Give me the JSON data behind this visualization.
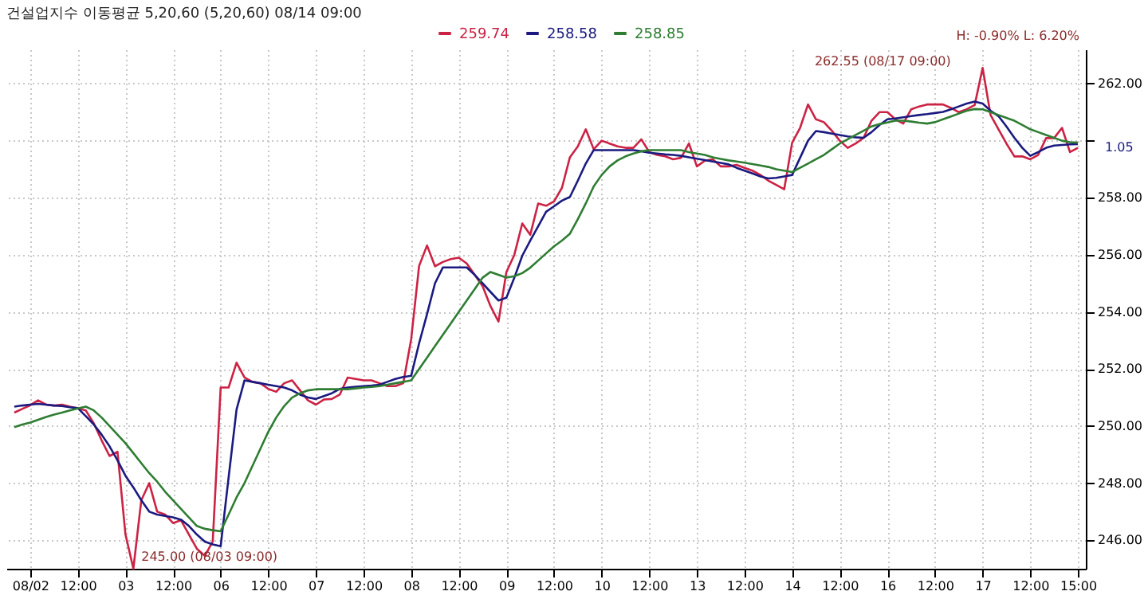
{
  "chart_data": {
    "type": "line",
    "title": "건설업지수 이동평균 5,20,60 (5,20,60) 08/14 09:00",
    "categories": [
      null,
      null,
      "08/02",
      null,
      null,
      null,
      null,
      null,
      "12:00",
      null,
      null,
      null,
      null,
      null,
      "03",
      null,
      null,
      null,
      null,
      null,
      "12:00",
      null,
      null,
      null,
      null,
      null,
      "06",
      null,
      null,
      null,
      null,
      null,
      "12:00",
      null,
      null,
      null,
      null,
      null,
      "07",
      null,
      null,
      null,
      null,
      null,
      "12:00",
      null,
      null,
      null,
      null,
      null,
      "08",
      null,
      null,
      null,
      null,
      null,
      "12:00",
      null,
      null,
      null,
      null,
      null,
      "09",
      null,
      null,
      null,
      null,
      null,
      "12:00",
      null,
      null,
      null,
      null,
      null,
      "10",
      null,
      null,
      null,
      null,
      null,
      "12:00",
      null,
      null,
      null,
      null,
      null,
      "13",
      null,
      null,
      null,
      null,
      null,
      "12:00",
      null,
      null,
      null,
      null,
      null,
      "14",
      null,
      null,
      null,
      null,
      null,
      "12:00",
      null,
      null,
      null,
      null,
      null,
      "16",
      null,
      null,
      null,
      null,
      null,
      "12:00",
      null,
      null,
      null,
      null,
      null,
      "17",
      null,
      null,
      null,
      null,
      null,
      "12:00",
      null,
      null,
      null,
      null,
      null,
      "15:00"
    ],
    "ylim": [
      245,
      263.2
    ],
    "yticks": [
      {
        "value": 246,
        "label": "246.00"
      },
      {
        "value": 248,
        "label": "248.00"
      },
      {
        "value": 250,
        "label": "250.00"
      },
      {
        "value": 252,
        "label": "252.00"
      },
      {
        "value": 254,
        "label": "254.00"
      },
      {
        "value": 256,
        "label": "256.00"
      },
      {
        "value": 258,
        "label": "258.00"
      },
      {
        "value": 260,
        "label": null
      },
      {
        "value": 262,
        "label": "262.00"
      }
    ],
    "grid": true,
    "legend": "top left",
    "line_style": "solid",
    "annotations": [
      "262.55 (08/17 09:00)",
      "245.00 (08/03 09:00)",
      "H: -0.90%  L: 6.20%",
      "1.05"
    ],
    "series": [
      {
        "name": "259.74",
        "color": "#cc2244",
        "values": [
          250.47,
          250.6,
          250.73,
          250.9,
          250.75,
          250.72,
          250.75,
          250.68,
          250.62,
          250.55,
          250.1,
          249.5,
          248.95,
          249.1,
          246.21,
          245.0,
          247.4,
          248.0,
          247.0,
          246.9,
          246.6,
          246.7,
          246.2,
          245.7,
          245.45,
          245.95,
          251.35,
          251.35,
          252.22,
          251.7,
          251.55,
          251.5,
          251.3,
          251.2,
          251.5,
          251.6,
          251.25,
          250.9,
          250.75,
          250.93,
          250.95,
          251.1,
          251.7,
          251.65,
          251.6,
          251.6,
          251.5,
          251.4,
          251.4,
          251.5,
          253.04,
          255.61,
          256.33,
          255.6,
          255.75,
          255.85,
          255.9,
          255.7,
          255.3,
          254.9,
          254.2,
          253.66,
          255.4,
          256.0,
          257.1,
          256.7,
          257.8,
          257.72,
          257.87,
          258.35,
          259.42,
          259.8,
          260.4,
          259.7,
          260.0,
          259.9,
          259.8,
          259.75,
          259.75,
          260.05,
          259.6,
          259.5,
          259.45,
          259.35,
          259.4,
          259.9,
          259.1,
          259.3,
          259.35,
          259.1,
          259.1,
          259.15,
          259.05,
          258.95,
          258.8,
          258.6,
          258.45,
          258.3,
          259.93,
          260.45,
          261.27,
          260.75,
          260.65,
          260.35,
          260.0,
          259.75,
          259.9,
          260.1,
          260.7,
          261.0,
          261.0,
          260.75,
          260.6,
          261.1,
          261.2,
          261.27,
          261.27,
          261.27,
          261.15,
          261.0,
          261.1,
          261.25,
          262.55,
          260.9,
          260.4,
          259.9,
          259.45,
          259.45,
          259.35,
          259.5,
          260.09,
          260.09,
          260.45,
          259.6,
          259.75
        ]
      },
      {
        "name": "258.58",
        "color": "#1a1a80",
        "values": [
          250.68,
          250.72,
          250.75,
          250.78,
          250.75,
          250.72,
          250.7,
          250.66,
          250.63,
          250.35,
          250.06,
          249.7,
          249.29,
          248.8,
          248.26,
          247.85,
          247.4,
          247.0,
          246.9,
          246.85,
          246.8,
          246.72,
          246.5,
          246.2,
          245.95,
          245.85,
          245.79,
          248.2,
          250.58,
          251.6,
          251.55,
          251.5,
          251.45,
          251.4,
          251.35,
          251.25,
          251.1,
          251.0,
          250.95,
          251.05,
          251.15,
          251.3,
          251.35,
          251.38,
          251.4,
          251.42,
          251.45,
          251.55,
          251.65,
          251.72,
          251.76,
          252.9,
          253.92,
          255.0,
          255.56,
          255.56,
          255.56,
          255.56,
          255.3,
          255.0,
          254.7,
          254.4,
          254.5,
          255.2,
          255.97,
          256.5,
          257.0,
          257.51,
          257.7,
          257.9,
          258.03,
          258.6,
          259.2,
          259.67,
          259.67,
          259.67,
          259.67,
          259.67,
          259.67,
          259.63,
          259.58,
          259.55,
          259.52,
          259.5,
          259.47,
          259.42,
          259.37,
          259.32,
          259.27,
          259.22,
          259.17,
          259.05,
          258.95,
          258.85,
          258.75,
          258.68,
          258.7,
          258.75,
          258.8,
          259.4,
          260.0,
          260.34,
          260.3,
          260.25,
          260.2,
          260.15,
          260.12,
          260.1,
          260.3,
          260.55,
          260.75,
          260.78,
          260.82,
          260.86,
          260.9,
          260.93,
          260.97,
          261.01,
          261.1,
          261.2,
          261.3,
          261.37,
          261.3,
          261.05,
          260.86,
          260.5,
          260.1,
          259.75,
          259.47,
          259.6,
          259.75,
          259.83,
          259.85,
          259.87,
          259.88
        ]
      },
      {
        "name": "258.85",
        "color": "#2e7d32",
        "values": [
          249.96,
          250.05,
          250.12,
          250.22,
          250.32,
          250.4,
          250.47,
          250.55,
          250.62,
          250.68,
          250.55,
          250.3,
          250.0,
          249.7,
          249.4,
          249.05,
          248.7,
          248.35,
          248.05,
          247.7,
          247.4,
          247.1,
          246.8,
          246.5,
          246.4,
          246.35,
          246.31,
          246.9,
          247.5,
          248.0,
          248.6,
          249.2,
          249.8,
          250.3,
          250.7,
          251.0,
          251.15,
          251.25,
          251.29,
          251.29,
          251.29,
          251.29,
          251.29,
          251.32,
          251.35,
          251.37,
          251.4,
          251.45,
          251.5,
          251.55,
          251.6,
          252.0,
          252.4,
          252.8,
          253.2,
          253.6,
          254.0,
          254.4,
          254.8,
          255.2,
          255.4,
          255.3,
          255.2,
          255.25,
          255.36,
          255.55,
          255.8,
          256.05,
          256.3,
          256.5,
          256.74,
          257.25,
          257.8,
          258.4,
          258.8,
          259.1,
          259.31,
          259.45,
          259.55,
          259.63,
          259.67,
          259.67,
          259.67,
          259.67,
          259.67,
          259.6,
          259.55,
          259.5,
          259.42,
          259.36,
          259.31,
          259.27,
          259.23,
          259.18,
          259.13,
          259.08,
          259.0,
          258.95,
          258.9,
          259.05,
          259.2,
          259.35,
          259.5,
          259.7,
          259.9,
          260.05,
          260.2,
          260.35,
          260.5,
          260.58,
          260.64,
          260.7,
          260.7,
          260.67,
          260.63,
          260.6,
          260.65,
          260.75,
          260.85,
          260.95,
          261.05,
          261.11,
          261.1,
          261.0,
          260.9,
          260.8,
          260.7,
          260.55,
          260.4,
          260.3,
          260.2,
          260.1,
          260.0,
          259.95,
          259.93
        ]
      }
    ]
  }
}
